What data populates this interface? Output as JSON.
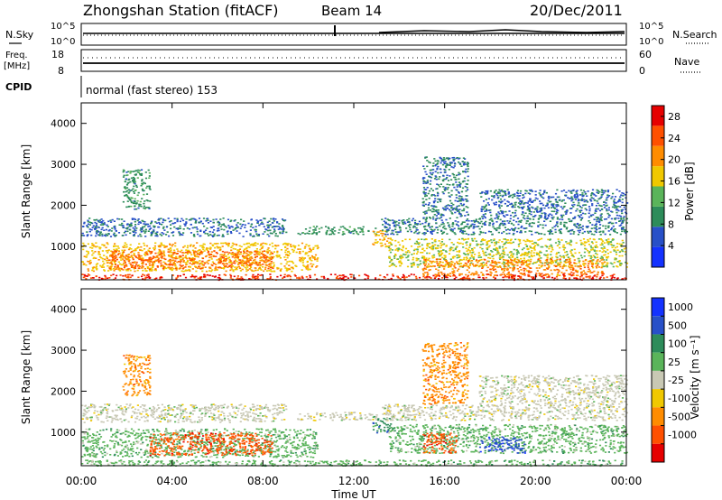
{
  "header": {
    "station": "Zhongshan Station (fitACF)",
    "beam": "Beam 14",
    "date": "20/Dec/2011"
  },
  "top_panels": {
    "nsky_label": "N.Sky",
    "nsearch_label": "N.Search",
    "freq_label_1": "Freq.",
    "freq_label_2": "[MHz]",
    "nave_label": "Nave",
    "cpid_label": "CPID",
    "cpid_value": "normal (fast stereo) 153",
    "noise_left_ticks": [
      "10^5",
      "10^0"
    ],
    "noise_right_ticks": [
      "10^5",
      "10^0"
    ],
    "freq_ticks": [
      "18",
      "8"
    ],
    "nave_ticks": [
      "60",
      "0"
    ]
  },
  "colors": {
    "power": [
      "#1432ff",
      "#2850c8",
      "#2d8c5a",
      "#5ab45a",
      "#f0c800",
      "#ff8c00",
      "#ff5000",
      "#e60000"
    ],
    "velocity": [
      "#e60000",
      "#ff5000",
      "#ff8c00",
      "#f0c800",
      "#c8c8b4",
      "#5ab45a",
      "#2d8c5a",
      "#2850c8",
      "#1432ff"
    ]
  },
  "chart_data": [
    {
      "type": "heatmap",
      "name": "power-panel",
      "ylabel": "Slant Range [km]",
      "xlabel": "",
      "xlim": [
        "00:00",
        "00:00"
      ],
      "ylim": [
        180,
        4500
      ],
      "yticks": [
        "1000",
        "2000",
        "3000",
        "4000"
      ],
      "colorbar": {
        "label": "Power [dB]",
        "ticks": [
          "4",
          "8",
          "12",
          "16",
          "20",
          "24",
          "28"
        ],
        "range": [
          0,
          30
        ]
      },
      "regions": [
        {
          "t": [
            0.0,
            24.0
          ],
          "r": [
            190,
            330
          ],
          "level": 28
        },
        {
          "t": [
            0.0,
            10.4
          ],
          "r": [
            400,
            1100
          ],
          "level": 18
        },
        {
          "t": [
            1.2,
            8.4
          ],
          "r": [
            450,
            900
          ],
          "level": 24
        },
        {
          "t": [
            0.0,
            9.0
          ],
          "r": [
            1250,
            1700
          ],
          "level": 6
        },
        {
          "t": [
            1.8,
            3.0
          ],
          "r": [
            1900,
            2900
          ],
          "level": 9
        },
        {
          "t": [
            9.5,
            13.0
          ],
          "r": [
            1300,
            1500
          ],
          "level": 9
        },
        {
          "t": [
            12.8,
            13.6
          ],
          "r": [
            1000,
            1400
          ],
          "level": 18
        },
        {
          "t": [
            13.2,
            24.0
          ],
          "r": [
            1300,
            1700
          ],
          "level": 7
        },
        {
          "t": [
            13.5,
            24.0
          ],
          "r": [
            500,
            1200
          ],
          "level": 16
        },
        {
          "t": [
            15.0,
            23.0
          ],
          "r": [
            300,
            700
          ],
          "level": 22
        },
        {
          "t": [
            15.0,
            17.0
          ],
          "r": [
            1700,
            3200
          ],
          "level": 7
        },
        {
          "t": [
            17.5,
            24.0
          ],
          "r": [
            1700,
            2400
          ],
          "level": 6
        }
      ]
    },
    {
      "type": "heatmap",
      "name": "velocity-panel",
      "ylabel": "Slant Range [km]",
      "xlabel": "Time UT",
      "xlim": [
        "00:00",
        "00:00"
      ],
      "ylim": [
        180,
        4500
      ],
      "xticks": [
        "00:00",
        "04:00",
        "08:00",
        "12:00",
        "16:00",
        "20:00",
        "00:00"
      ],
      "yticks": [
        "1000",
        "2000",
        "3000",
        "4000"
      ],
      "colorbar": {
        "label": "Velocity [m s⁻¹]",
        "ticks": [
          "1000",
          "500",
          "100",
          "25",
          "-25",
          "-100",
          "-500",
          "-1000"
        ]
      },
      "regions": [
        {
          "t": [
            0.0,
            24.0
          ],
          "r": [
            190,
            330
          ],
          "level": 1
        },
        {
          "t": [
            0.0,
            10.4
          ],
          "r": [
            400,
            1100
          ],
          "level": 1
        },
        {
          "t": [
            3.0,
            8.4
          ],
          "r": [
            450,
            1000
          ],
          "level": -3
        },
        {
          "t": [
            0.0,
            9.0
          ],
          "r": [
            1250,
            1700
          ],
          "level": 0
        },
        {
          "t": [
            1.8,
            3.0
          ],
          "r": [
            1900,
            2900
          ],
          "level": -2
        },
        {
          "t": [
            9.5,
            13.0
          ],
          "r": [
            1300,
            1500
          ],
          "level": 0
        },
        {
          "t": [
            12.8,
            13.6
          ],
          "r": [
            1000,
            1400
          ],
          "level": 2
        },
        {
          "t": [
            13.2,
            24.0
          ],
          "r": [
            1300,
            1700
          ],
          "level": 0
        },
        {
          "t": [
            13.5,
            24.0
          ],
          "r": [
            500,
            1200
          ],
          "level": 1
        },
        {
          "t": [
            15.0,
            16.5
          ],
          "r": [
            500,
            1000
          ],
          "level": -3
        },
        {
          "t": [
            17.5,
            19.5
          ],
          "r": [
            500,
            900
          ],
          "level": 3
        },
        {
          "t": [
            15.0,
            17.0
          ],
          "r": [
            1700,
            3200
          ],
          "level": -2
        },
        {
          "t": [
            17.5,
            24.0
          ],
          "r": [
            1700,
            2400
          ],
          "level": 0
        }
      ]
    }
  ]
}
